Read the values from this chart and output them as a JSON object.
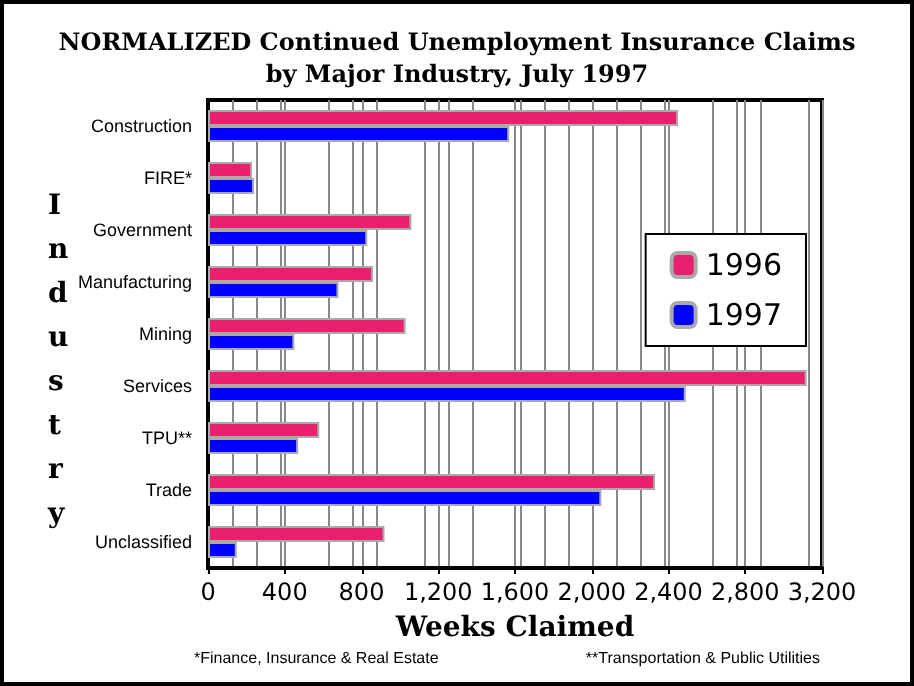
{
  "chart_data": {
    "type": "bar",
    "orientation": "horizontal",
    "title": "NORMALIZED Continued Unemployment Insurance Claims\nby Major Industry, July 1997",
    "xlabel": "Weeks Claimed",
    "ylabel": "Industry",
    "categories": [
      "Construction",
      "FIRE*",
      "Government",
      "Manufacturing",
      "Mining",
      "Services",
      "TPU**",
      "Trade",
      "Unclassified"
    ],
    "series": [
      {
        "name": "1996",
        "color": "#e8206e",
        "values": [
          2450,
          230,
          1060,
          860,
          1030,
          3120,
          580,
          2330,
          920
        ]
      },
      {
        "name": "1997",
        "color": "#0000ff",
        "values": [
          1570,
          240,
          830,
          680,
          450,
          2490,
          470,
          2050,
          150
        ]
      }
    ],
    "xlim": [
      0,
      3200
    ],
    "xticks": [
      {
        "value": 0,
        "label": "0"
      },
      {
        "value": 400,
        "label": "400"
      },
      {
        "value": 800,
        "label": "800"
      },
      {
        "value": 1200,
        "label": "1,200"
      },
      {
        "value": 1600,
        "label": "1,600"
      },
      {
        "value": 2000,
        "label": "2,000"
      },
      {
        "value": 2400,
        "label": "2,400"
      },
      {
        "value": 2800,
        "label": "2,800"
      },
      {
        "value": 3200,
        "label": "3,200"
      }
    ],
    "grid": "x",
    "legend": "right",
    "annotations": [
      "*Finance, Insurance & Real Estate",
      "**Transportation & Public Utilities"
    ]
  }
}
